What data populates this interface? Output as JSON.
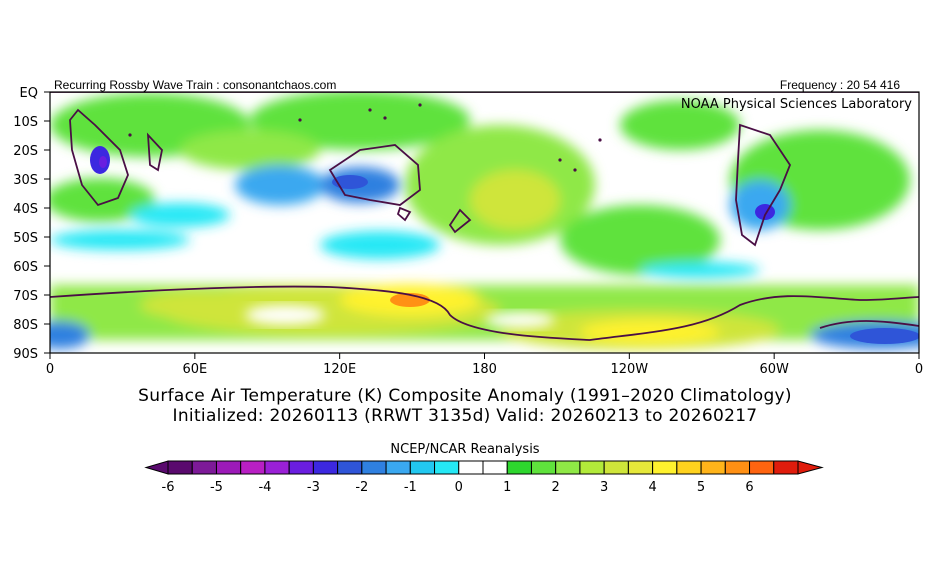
{
  "header": {
    "left": "Recurring Rossby Wave Train : consonantchaos.com",
    "right": "Frequency : 20 54 416",
    "lab": "NOAA Physical Sciences Laboratory"
  },
  "map": {
    "lat_labels": [
      "EQ",
      "10S",
      "20S",
      "30S",
      "40S",
      "50S",
      "60S",
      "70S",
      "80S",
      "90S"
    ],
    "lon_labels": [
      "0",
      "60E",
      "120E",
      "180",
      "120W",
      "60W",
      "0"
    ]
  },
  "titles": {
    "line1": "Surface Air Temperature (K) Composite Anomaly (1991–2020 Climatology)",
    "line2": "Initialized: 20260113 (RRWT 3135d) Valid: 20260213 to 20260217"
  },
  "colorbar": {
    "title": "NCEP/NCAR Reanalysis",
    "tick_labels": [
      "-6",
      "-5",
      "-4",
      "-3",
      "-2",
      "-1",
      "0",
      "1",
      "2",
      "3",
      "4",
      "5",
      "6"
    ],
    "colors": [
      "#5a0a6e",
      "#7d1a98",
      "#9c1ab8",
      "#b81fc4",
      "#9a20d6",
      "#6a1ee0",
      "#3c28e0",
      "#2f55d8",
      "#2f80e0",
      "#3aa8f0",
      "#22c8f0",
      "#25e8f5",
      "#ffffff",
      "#ffffff",
      "#2ed62e",
      "#5fe23c",
      "#8fe846",
      "#b2ea3a",
      "#cfe53a",
      "#e6e83a",
      "#fff22e",
      "#ffd21e",
      "#ffb41a",
      "#ff9014",
      "#ff6410",
      "#e01c0c"
    ]
  }
}
